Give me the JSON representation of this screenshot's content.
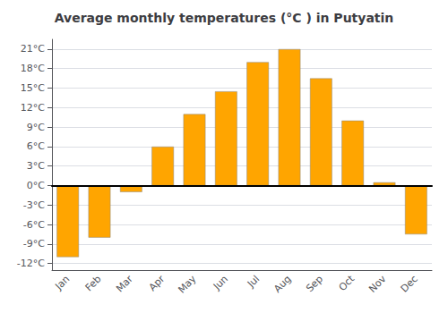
{
  "chart_data": {
    "type": "bar",
    "title": "Average monthly temperatures (°C ) in Putyatin",
    "categories": [
      "Jan",
      "Feb",
      "Mar",
      "Apr",
      "May",
      "Jun",
      "Jul",
      "Aug",
      "Sep",
      "Oct",
      "Nov",
      "Dec"
    ],
    "values": [
      -11,
      -8,
      -1,
      6,
      11,
      14.5,
      19,
      21,
      16.5,
      10,
      0.5,
      -7.5
    ],
    "color": "#FFA500",
    "ylim": [
      -13,
      22.5
    ],
    "yticks": [
      {
        "value": -12,
        "label": "-12°C"
      },
      {
        "value": -9,
        "label": "-9°C"
      },
      {
        "value": -6,
        "label": "-6°C"
      },
      {
        "value": -3,
        "label": "-3°C"
      },
      {
        "value": 0,
        "label": "0°C"
      },
      {
        "value": 3,
        "label": "3°C"
      },
      {
        "value": 6,
        "label": "6°C"
      },
      {
        "value": 9,
        "label": "9°C"
      },
      {
        "value": 12,
        "label": "12°C"
      },
      {
        "value": 15,
        "label": "15°C"
      },
      {
        "value": 18,
        "label": "18°C"
      },
      {
        "value": 21,
        "label": "21°C"
      }
    ],
    "grid": true
  }
}
